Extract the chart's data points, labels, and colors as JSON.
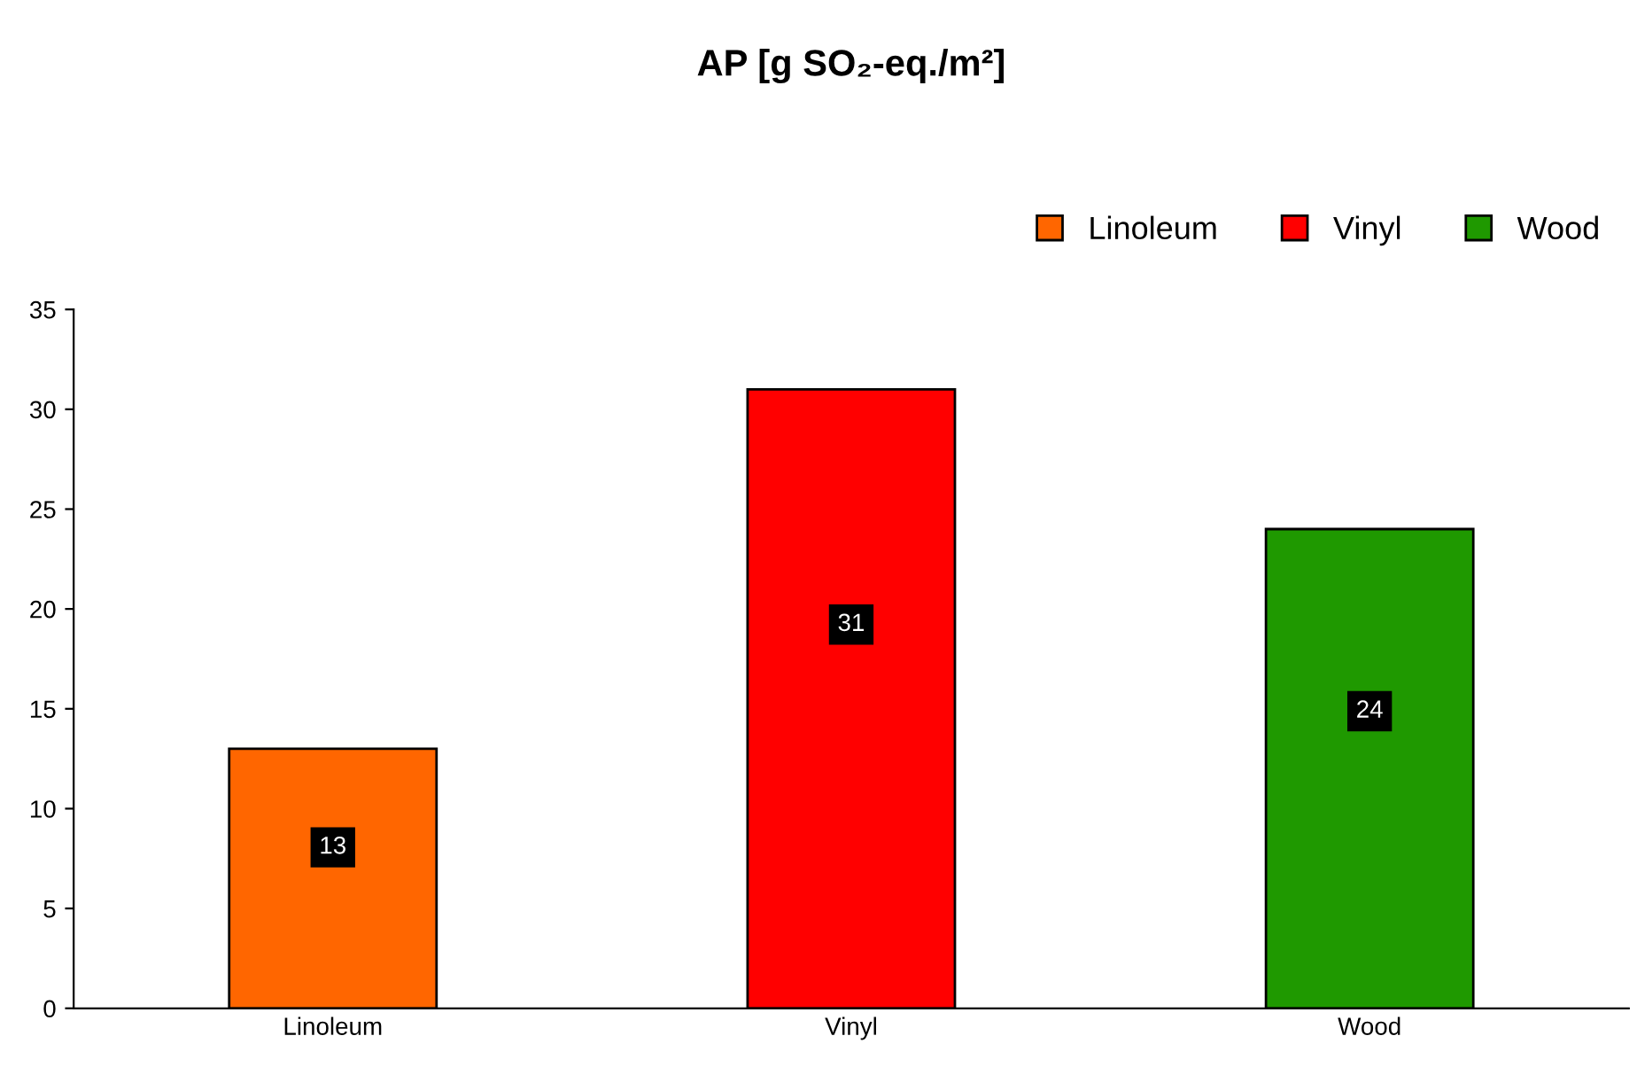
{
  "chart_data": {
    "type": "bar",
    "title": "AP [g SO₂-eq./m²]",
    "categories": [
      "Linoleum",
      "Vinyl",
      "Wood"
    ],
    "series": [
      {
        "name": "Linoleum",
        "color": "#ff6600",
        "values": [
          13,
          null,
          null
        ]
      },
      {
        "name": "Vinyl",
        "color": "#ff0000",
        "values": [
          null,
          31,
          null
        ]
      },
      {
        "name": "Wood",
        "color": "#1f9900",
        "values": [
          null,
          null,
          24
        ]
      }
    ],
    "ylim": [
      0,
      35
    ],
    "yticks": [
      0,
      5,
      10,
      15,
      20,
      25,
      30,
      35
    ],
    "data_labels": true,
    "legend": "top right",
    "grid": false
  }
}
